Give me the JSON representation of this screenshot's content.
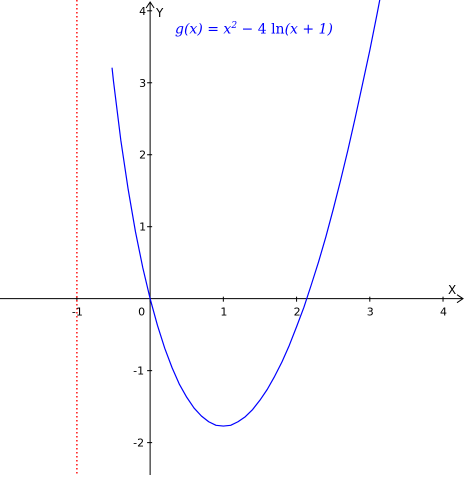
{
  "chart_data": {
    "type": "line",
    "title": "",
    "xlabel": "X",
    "ylabel": "Y",
    "xlim": [
      -2.05,
      4.3
    ],
    "ylim": [
      -2.45,
      4.15
    ],
    "x_ticks": [
      -1,
      0,
      1,
      2,
      3,
      4
    ],
    "x_tick_labels": [
      "-1",
      "0",
      "1",
      "2",
      "3",
      "4"
    ],
    "y_ticks": [
      -2,
      -1,
      1,
      2,
      3,
      4
    ],
    "y_tick_labels": [
      "-2",
      "-1",
      "1",
      "2",
      "3",
      "4"
    ],
    "grid": false,
    "annotation": {
      "function_name": "g(x)",
      "equals": "=",
      "rhs_prefix": "x",
      "exponent": "2",
      "rhs_middle": "− 4",
      "log": "ln",
      "argument": "(x + 1)",
      "color": "#0000ff"
    },
    "series": [
      {
        "curve_function": "x^2 - 4 ln(x+1)",
        "color": "#0000ff",
        "x": [
          -0.52,
          -0.5,
          -0.4,
          -0.3,
          -0.2,
          -0.1,
          0,
          0.1,
          0.2,
          0.3,
          0.4,
          0.5,
          0.6,
          0.7,
          0.8,
          0.9,
          1,
          1.1,
          1.2,
          1.3,
          1.4,
          1.5,
          1.6,
          1.7,
          1.8,
          1.9,
          2,
          2.1,
          2.2,
          2.3,
          2.4,
          2.5,
          2.6,
          2.7,
          2.8,
          2.9,
          3,
          3.1,
          3.2,
          3.3
        ],
        "y": [
          3.21,
          3.02,
          2.2,
          1.52,
          0.93,
          0.43,
          0,
          -0.37,
          -0.69,
          -0.96,
          -1.19,
          -1.37,
          -1.52,
          -1.63,
          -1.71,
          -1.76,
          -1.77,
          -1.76,
          -1.71,
          -1.64,
          -1.54,
          -1.41,
          -1.26,
          -1.08,
          -0.88,
          -0.65,
          -0.39,
          -0.12,
          0.19,
          0.51,
          0.86,
          1.24,
          1.64,
          2.06,
          2.51,
          2.98,
          3.45,
          3.96,
          4.49,
          5.04
        ]
      }
    ],
    "asymptote": {
      "x": -1,
      "color": "#ff0000",
      "style": "dotted"
    }
  }
}
